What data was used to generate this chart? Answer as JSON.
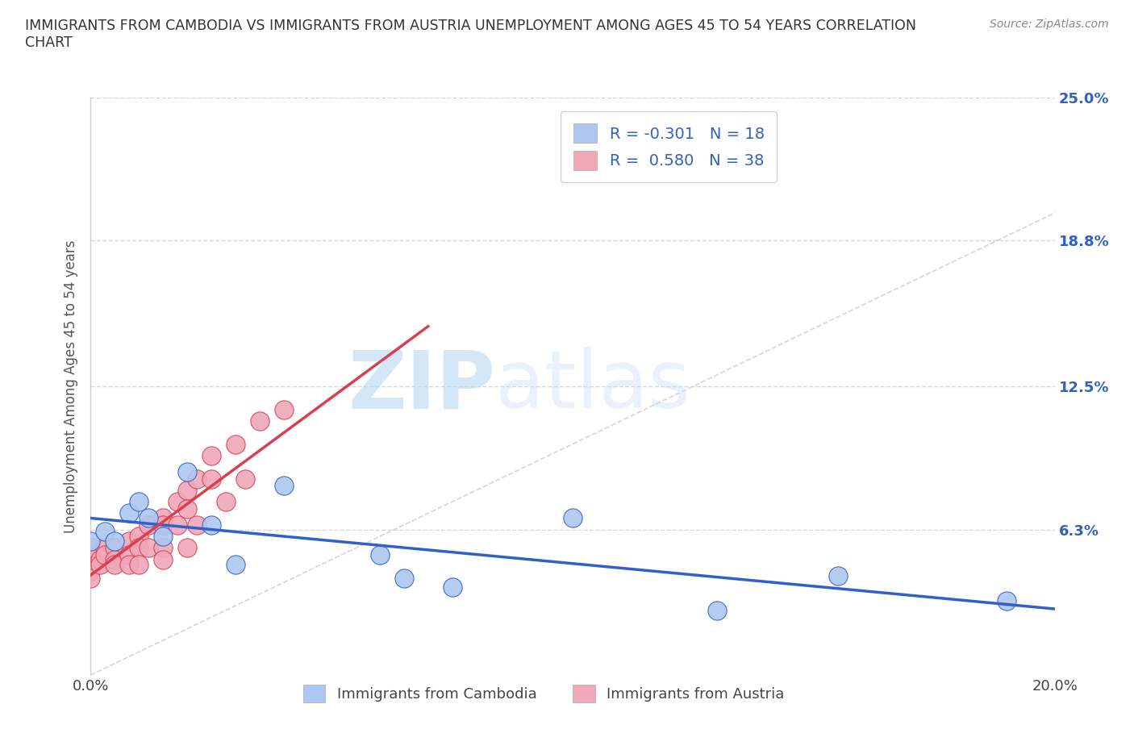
{
  "title": "IMMIGRANTS FROM CAMBODIA VS IMMIGRANTS FROM AUSTRIA UNEMPLOYMENT AMONG AGES 45 TO 54 YEARS CORRELATION\nCHART",
  "source": "Source: ZipAtlas.com",
  "ylabel": "Unemployment Among Ages 45 to 54 years",
  "watermark": "ZIPatlas",
  "xlim": [
    0.0,
    0.2
  ],
  "ylim": [
    0.0,
    0.25
  ],
  "xtick_positions": [
    0.0,
    0.05,
    0.1,
    0.15,
    0.2
  ],
  "xtick_labels": [
    "0.0%",
    "",
    "",
    "",
    "20.0%"
  ],
  "yticks_right": [
    0.25,
    0.188,
    0.125,
    0.063,
    0.0
  ],
  "ytick_labels_right": [
    "25.0%",
    "18.8%",
    "12.5%",
    "6.3%",
    ""
  ],
  "cambodia_color": "#adc8f0",
  "austria_color": "#f0a8b8",
  "cambodia_R": -0.301,
  "cambodia_N": 18,
  "austria_R": 0.58,
  "austria_N": 38,
  "legend_color": "#3060c0",
  "bg_color": "#ffffff",
  "grid_color": "#cccccc",
  "trend_cambodia_color": "#3060c8",
  "trend_austria_color": "#d84050",
  "diagonal_color": "#cccccc",
  "cambodia_x": [
    0.0,
    0.003,
    0.005,
    0.008,
    0.01,
    0.012,
    0.015,
    0.02,
    0.025,
    0.03,
    0.04,
    0.06,
    0.065,
    0.075,
    0.1,
    0.13,
    0.155,
    0.19
  ],
  "cambodia_y": [
    0.058,
    0.062,
    0.058,
    0.07,
    0.075,
    0.068,
    0.06,
    0.088,
    0.065,
    0.048,
    0.082,
    0.052,
    0.042,
    0.038,
    0.068,
    0.028,
    0.043,
    0.032
  ],
  "austria_x": [
    0.0,
    0.0,
    0.0,
    0.0,
    0.0,
    0.002,
    0.002,
    0.003,
    0.003,
    0.005,
    0.005,
    0.005,
    0.008,
    0.008,
    0.008,
    0.01,
    0.01,
    0.01,
    0.012,
    0.012,
    0.015,
    0.015,
    0.015,
    0.015,
    0.018,
    0.018,
    0.02,
    0.02,
    0.02,
    0.022,
    0.022,
    0.025,
    0.025,
    0.028,
    0.03,
    0.032,
    0.035,
    0.04
  ],
  "austria_y": [
    0.048,
    0.052,
    0.055,
    0.045,
    0.042,
    0.05,
    0.048,
    0.055,
    0.052,
    0.055,
    0.05,
    0.048,
    0.058,
    0.052,
    0.048,
    0.06,
    0.055,
    0.048,
    0.065,
    0.055,
    0.068,
    0.065,
    0.055,
    0.05,
    0.075,
    0.065,
    0.08,
    0.072,
    0.055,
    0.085,
    0.065,
    0.095,
    0.085,
    0.075,
    0.1,
    0.085,
    0.11,
    0.115
  ]
}
